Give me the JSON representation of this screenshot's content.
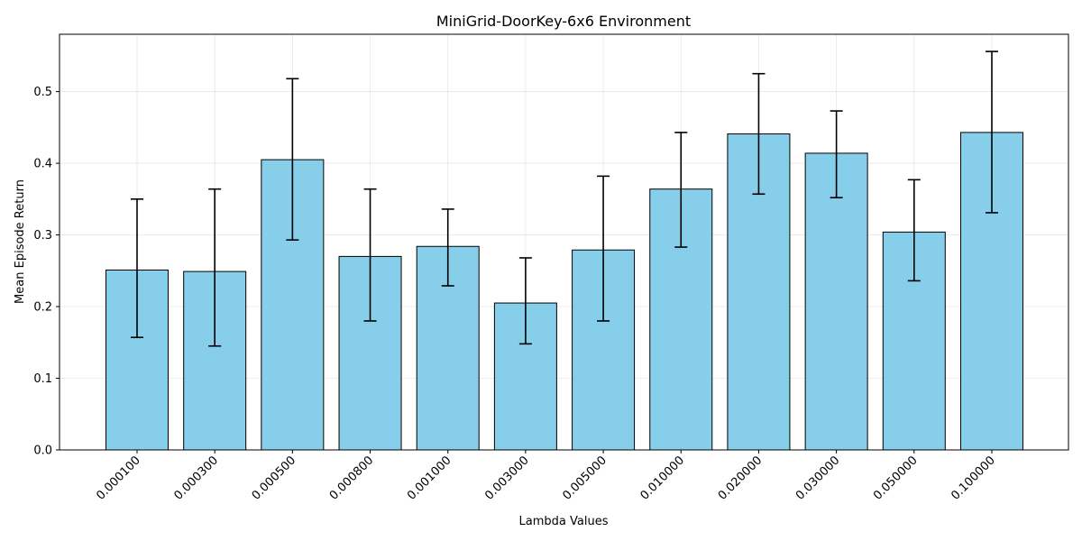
{
  "chart_data": {
    "type": "bar",
    "title": "MiniGrid-DoorKey-6x6 Environment",
    "xlabel": "Lambda Values",
    "ylabel": "Mean Episode Return",
    "categories": [
      "0.000100",
      "0.000300",
      "0.000500",
      "0.000800",
      "0.001000",
      "0.003000",
      "0.005000",
      "0.010000",
      "0.020000",
      "0.030000",
      "0.050000",
      "0.100000"
    ],
    "values": [
      0.251,
      0.249,
      0.405,
      0.27,
      0.284,
      0.205,
      0.279,
      0.364,
      0.441,
      0.414,
      0.304,
      0.443
    ],
    "error_lower": [
      0.157,
      0.145,
      0.293,
      0.18,
      0.229,
      0.148,
      0.18,
      0.283,
      0.357,
      0.352,
      0.236,
      0.331
    ],
    "error_upper": [
      0.35,
      0.364,
      0.518,
      0.364,
      0.336,
      0.268,
      0.382,
      0.443,
      0.525,
      0.473,
      0.377,
      0.556
    ],
    "ylim": [
      0,
      0.58
    ],
    "yticks": [
      0.0,
      0.1,
      0.2,
      0.3,
      0.4,
      0.5
    ],
    "ytick_labels": [
      "0.0",
      "0.1",
      "0.2",
      "0.3",
      "0.4",
      "0.5"
    ],
    "grid": true,
    "bar_color": "#87ceeb",
    "edge_color": "#000000"
  }
}
